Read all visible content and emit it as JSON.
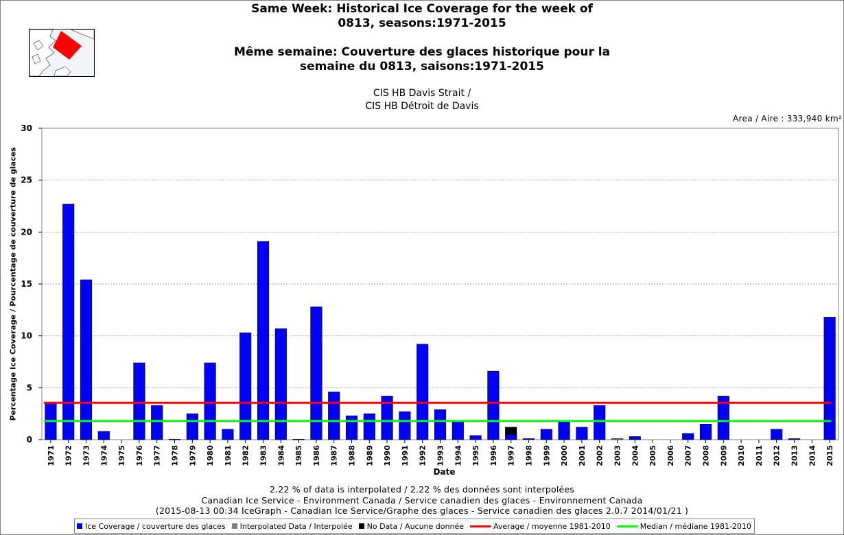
{
  "title_lines": [
    "Same Week: Historical Ice Coverage for the week of",
    "0813, seasons:1971-2015",
    "Même semaine: Couverture des glaces historique pour la",
    "semaine du 0813, saisons:1971-2015"
  ],
  "subtitle_lines": [
    "CIS HB Davis Strait /",
    "CIS HB Détroit de Davis"
  ],
  "area_label": "Area / Aire : 333,940 km²",
  "footer_lines": [
    "2.22 % of data is interpolated / 2.22 % des données sont interpolées",
    "Canadian Ice Service - Environment Canada / Service canadien des glaces - Environnement Canada",
    "(2015-08-13 00:34 IceGraph - Canadian Ice Service/Graphe des glaces - Service canadien des glaces 2.0.7 2014/01/21 )"
  ],
  "legend": {
    "ice": "Ice Coverage / couverture des glaces",
    "interp": "Interpolated Data / Interpolée",
    "nodata": "No Data / Aucune donnée",
    "average": "Average / moyenne 1981-2010",
    "median": "Median / médiane 1981-2010"
  },
  "colors": {
    "ice": "#0000ff",
    "interp": "#808080",
    "nodata": "#000000",
    "average": "#ff0000",
    "median": "#00ff00",
    "grid": "#a0a0a0"
  },
  "chart_data": {
    "type": "bar",
    "xlabel": "Date",
    "ylabel": "Percentage Ice Coverage / Pourcentage de couverture de glaces",
    "ylim": [
      0,
      30
    ],
    "yticks": [
      0,
      5,
      10,
      15,
      20,
      25,
      30
    ],
    "grid": true,
    "legend_position": "bottom",
    "categories": [
      "1971",
      "1972",
      "1973",
      "1974",
      "1975",
      "1976",
      "1977",
      "1978",
      "1979",
      "1980",
      "1981",
      "1982",
      "1983",
      "1984",
      "1985",
      "1986",
      "1987",
      "1988",
      "1989",
      "1990",
      "1991",
      "1992",
      "1993",
      "1994",
      "1995",
      "1996",
      "1997",
      "1998",
      "1999",
      "2000",
      "2001",
      "2002",
      "2003",
      "2004",
      "2005",
      "2006",
      "2007",
      "2008",
      "2009",
      "2010",
      "2011",
      "2012",
      "2013",
      "2014",
      "2015"
    ],
    "series": [
      {
        "name": "Ice Coverage / couverture des glaces",
        "values": [
          3.5,
          22.7,
          15.4,
          0.8,
          0,
          7.4,
          3.3,
          0.05,
          2.5,
          7.4,
          1.0,
          10.3,
          19.1,
          10.7,
          0.05,
          12.8,
          4.6,
          2.3,
          2.5,
          4.2,
          2.7,
          9.2,
          2.9,
          1.7,
          0.4,
          6.6,
          0.5,
          0.1,
          1.0,
          1.7,
          1.2,
          3.3,
          0,
          0.3,
          0,
          0,
          0.6,
          1.5,
          4.2,
          0,
          0,
          1.0,
          0.1,
          0,
          11.8
        ]
      },
      {
        "name": "Interpolated Data / Interpolée",
        "values": [
          0,
          0,
          0,
          0,
          0,
          0,
          0,
          0,
          0,
          0,
          0,
          0,
          0,
          0,
          0,
          0,
          0,
          0,
          0,
          0,
          0,
          0,
          0,
          0,
          0,
          0,
          0,
          0,
          0,
          0,
          0,
          0,
          0.1,
          0,
          0,
          0,
          0,
          0,
          0,
          0,
          0,
          0,
          0,
          0,
          0
        ]
      },
      {
        "name": "No Data / Aucune donnée",
        "values": [
          0,
          0,
          0,
          0,
          0,
          0,
          0,
          0,
          0,
          0,
          0,
          0,
          0,
          0,
          0,
          0,
          0,
          0,
          0,
          0,
          0,
          0,
          0,
          0,
          0,
          0,
          0.7,
          0,
          0,
          0,
          0,
          0,
          0,
          0,
          0,
          0,
          0,
          0,
          0,
          0,
          0,
          0,
          0,
          0,
          0
        ]
      }
    ],
    "average_1981_2010": 3.55,
    "median_1981_2010": 1.8
  }
}
